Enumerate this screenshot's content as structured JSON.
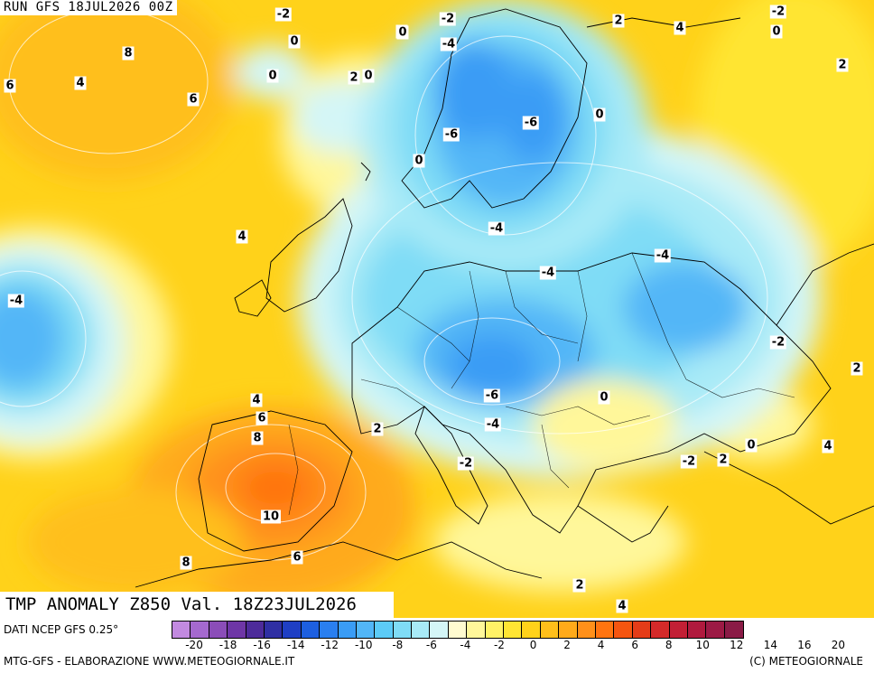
{
  "header": {
    "run": "RUN GFS 18JUL2026 00Z"
  },
  "title": {
    "text": "TMP ANOMALY Z850 Val. 18Z23JUL2026"
  },
  "footer": {
    "source": "DATI NCEP GFS 0.25°",
    "credit_left": "MTG-GFS - ELABORAZIONE WWW.METEOGIORNALE.IT",
    "credit_right": "(C) METEOGIORNALE"
  },
  "legend": {
    "colors": [
      "#c28ae0",
      "#a569cf",
      "#8b4db8",
      "#6e36a6",
      "#4d2b9a",
      "#2f2fa3",
      "#1f3fc4",
      "#1d5fe0",
      "#2a7ff0",
      "#3a9cf5",
      "#52b6f7",
      "#5ccbf7",
      "#7fdcf6",
      "#a8eaf7",
      "#d4f6f7",
      "#fffbd0",
      "#fff79a",
      "#fff266",
      "#ffe533",
      "#ffd21a",
      "#ffbf1a",
      "#ffaa1a",
      "#ff901a",
      "#ff7410",
      "#f55510",
      "#e43c18",
      "#d42a2a",
      "#c21f35",
      "#b01a3e",
      "#9c1a45",
      "#8a1b46"
    ],
    "ticks": [
      "-20",
      "-18",
      "-16",
      "-14",
      "-12",
      "-10",
      "-8",
      "-6",
      "-4",
      "-2",
      "0",
      "2",
      "4",
      "6",
      "8",
      "10",
      "12",
      "14",
      "16",
      "20"
    ]
  },
  "contour_labels": [
    "-2",
    "0",
    "-2",
    "2",
    "-2",
    "4",
    "0",
    "8",
    "0",
    "0",
    "-4",
    "6",
    "4",
    "0",
    "2",
    "0",
    "2",
    "0",
    "-6",
    "-6",
    "6",
    "0",
    "4",
    "-4",
    "-4",
    "-4",
    "-4",
    "-2",
    "2",
    "4",
    "6",
    "0",
    "2",
    "-6",
    "-4",
    "8",
    "2",
    "0",
    "4",
    "-2",
    "-2",
    "2",
    "10",
    "8",
    "6",
    "2",
    "4"
  ]
}
